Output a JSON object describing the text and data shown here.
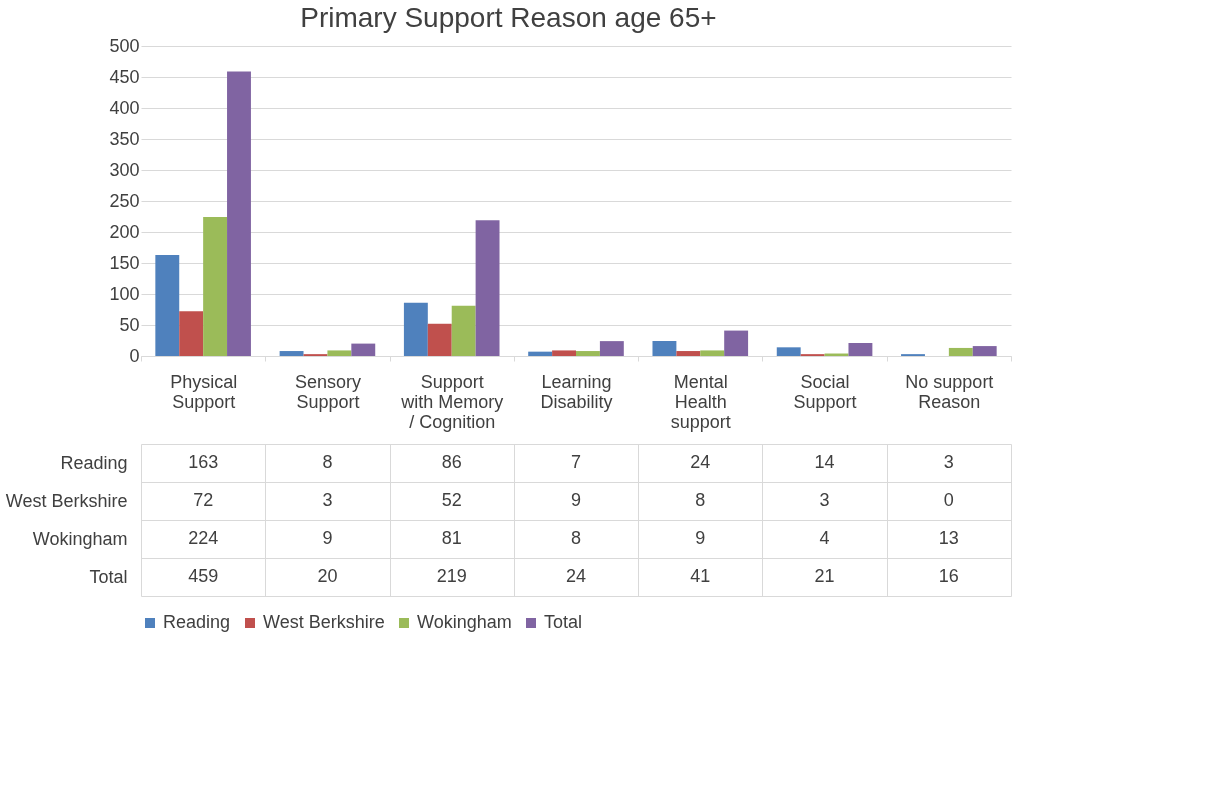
{
  "chart_data": {
    "type": "bar",
    "title": "Primary Support Reason age 65+",
    "categories": [
      "Physical Support",
      "Sensory Support",
      "Support with Memory / Cognition",
      "Learning Disability",
      "Mental Health support",
      "Social Support",
      "No support Reason"
    ],
    "series": [
      {
        "name": "Reading",
        "color": "#4f81bd",
        "values": [
          163,
          8,
          86,
          7,
          24,
          14,
          3
        ]
      },
      {
        "name": "West Berkshire",
        "color": "#c0504d",
        "values": [
          72,
          3,
          52,
          9,
          8,
          3,
          0
        ]
      },
      {
        "name": "Wokingham",
        "color": "#9bbb59",
        "values": [
          224,
          9,
          81,
          8,
          9,
          4,
          13
        ]
      },
      {
        "name": "Total",
        "color": "#8064a2",
        "values": [
          459,
          20,
          219,
          24,
          41,
          21,
          16
        ]
      }
    ],
    "ylim": [
      0,
      500
    ],
    "yticks": [
      0,
      50,
      100,
      150,
      200,
      250,
      300,
      350,
      400,
      450,
      500
    ],
    "grid": "y",
    "legend": "bottom",
    "data_labels": true
  }
}
